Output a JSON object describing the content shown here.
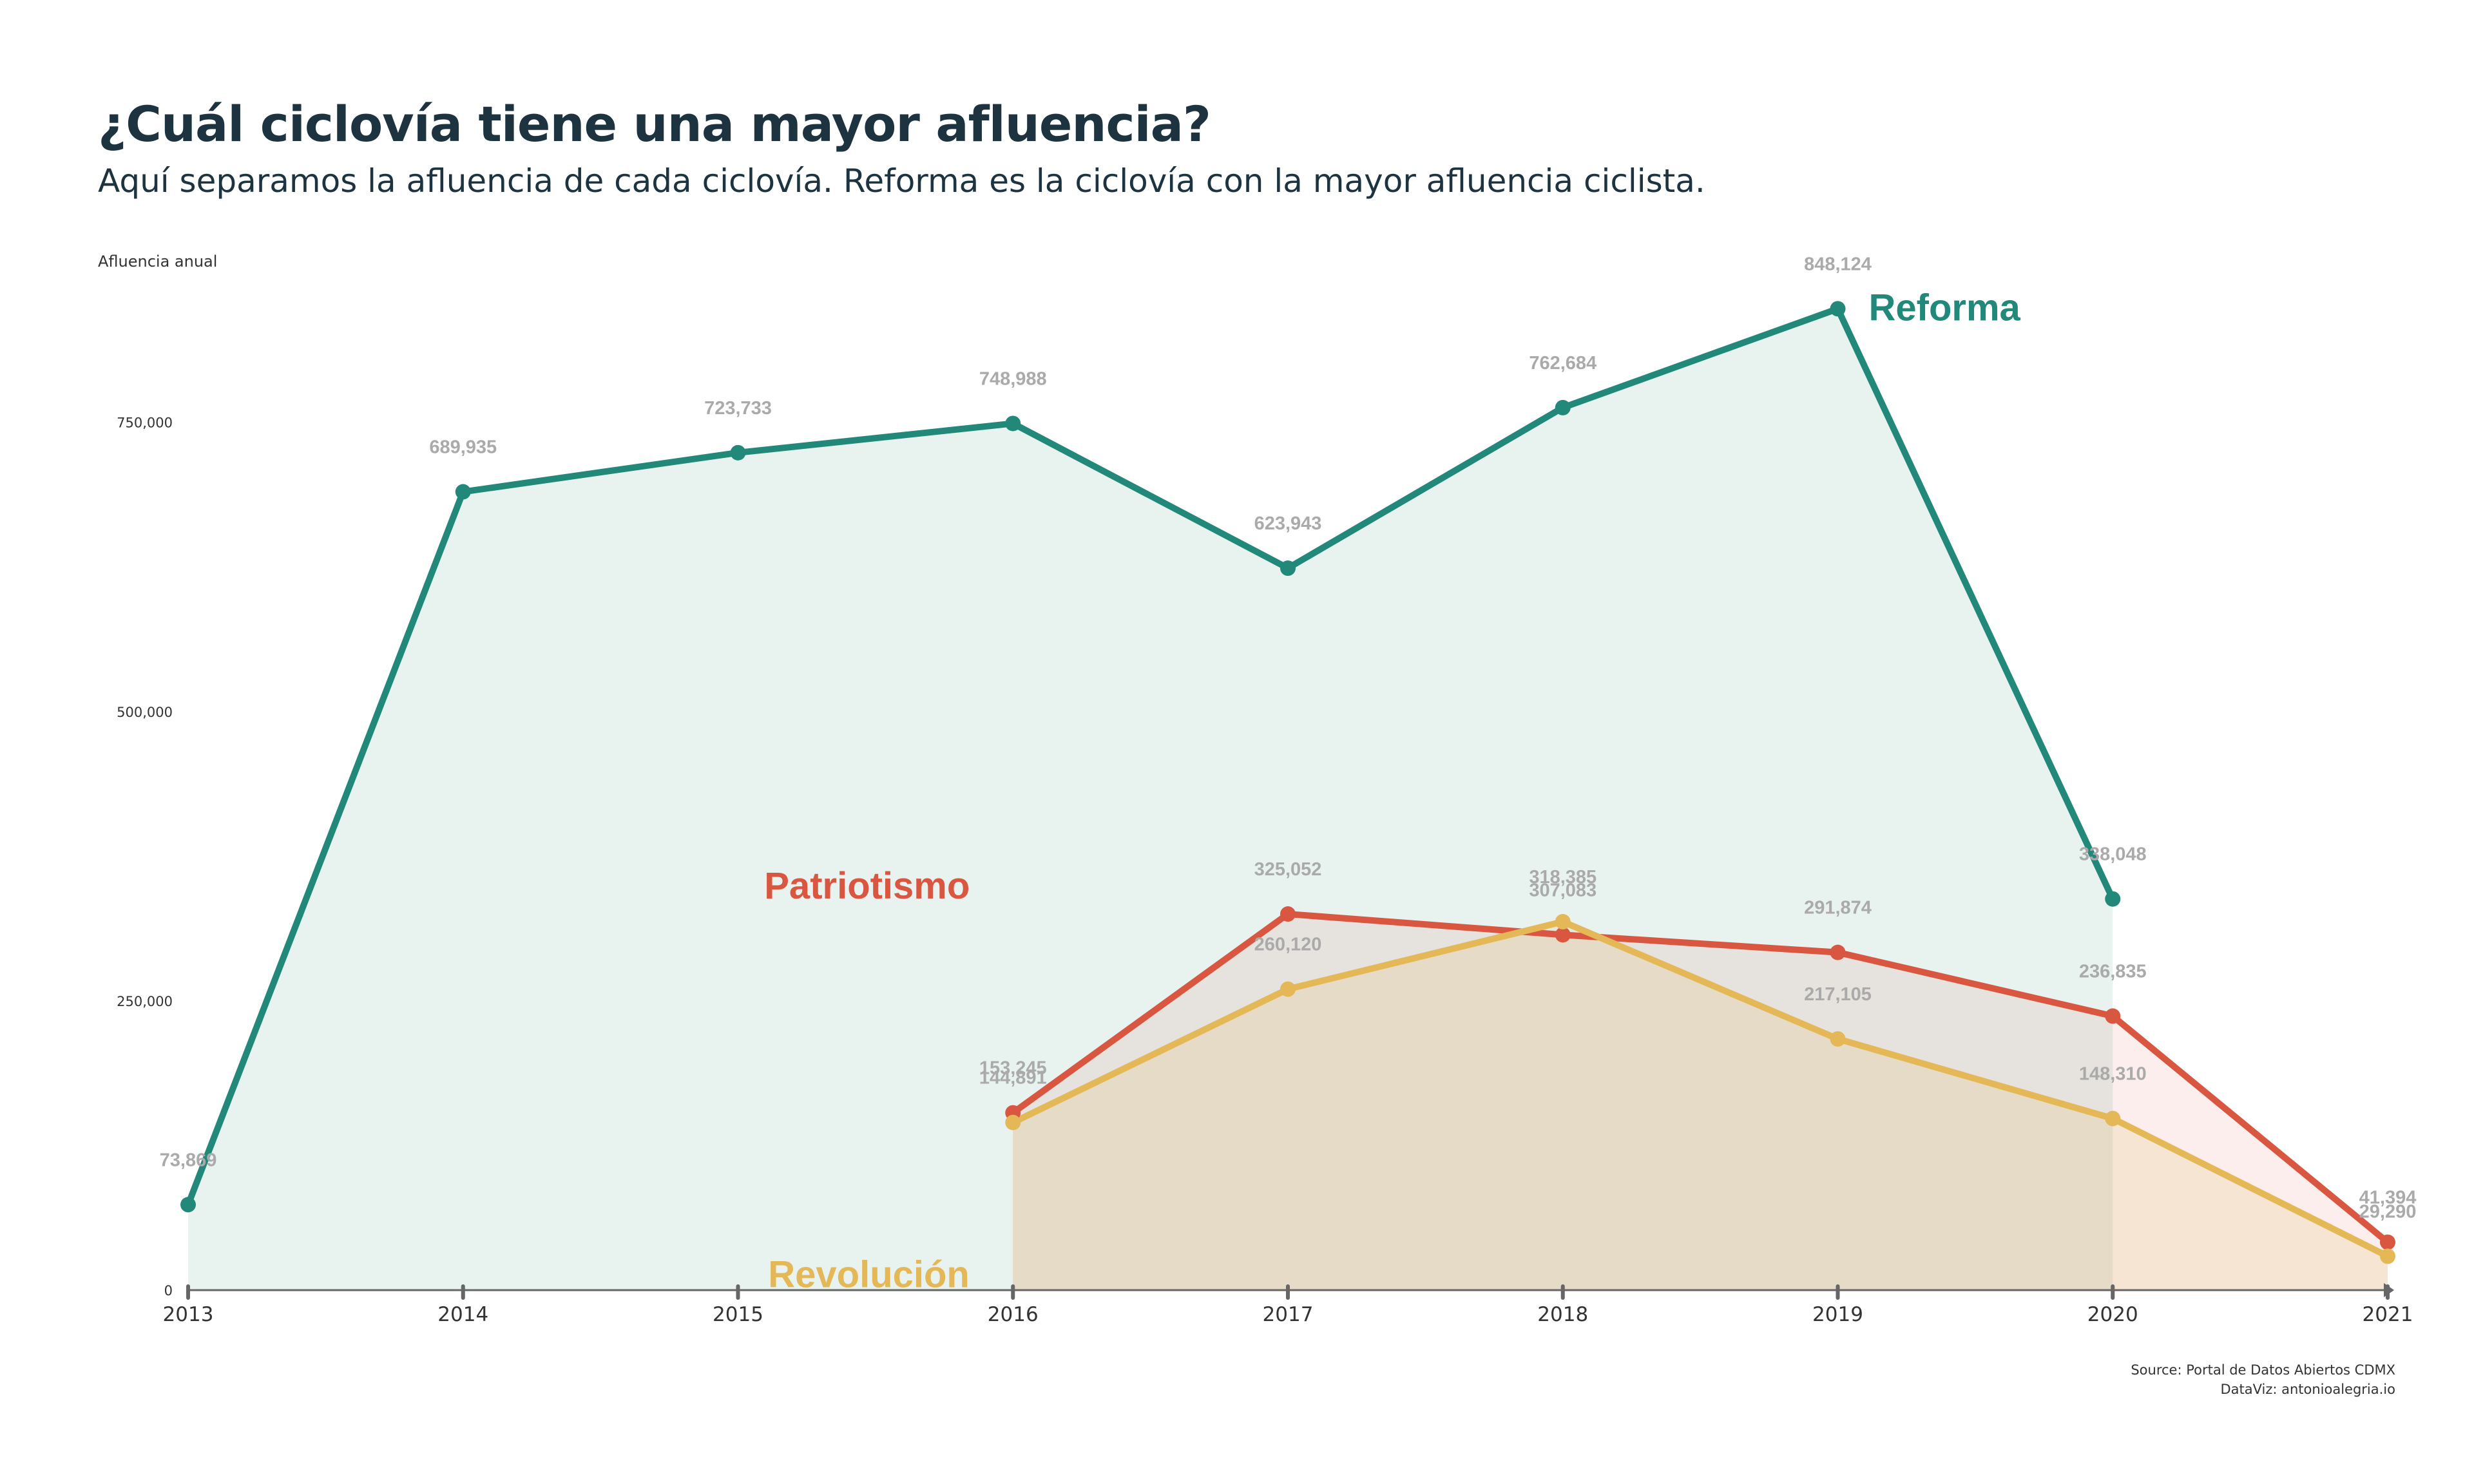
{
  "title": "¿Cuál ciclovía tiene una mayor afluencia?",
  "subtitle": "Aquí separamos la afluencia de cada ciclovía. Reforma es la ciclovía con la mayor afluencia ciclista.",
  "y_axis_title": "Afluencia anual",
  "source_line1": "Source: Portal de Datos Abiertos CDMX",
  "source_line2": "DataViz: antonioalegria.io",
  "chart_data": {
    "type": "area",
    "x": [
      2013,
      2014,
      2015,
      2016,
      2017,
      2018,
      2019,
      2020,
      2021
    ],
    "ylim": [
      0,
      850000
    ],
    "y_ticks": [
      0,
      250000,
      500000,
      750000
    ],
    "y_tick_labels": [
      "0",
      "250,000",
      "500,000",
      "750,000"
    ],
    "grid": false,
    "series": [
      {
        "name": "Reforma",
        "color": "#22897a",
        "fill": "#e8f2ef",
        "x": [
          2013,
          2014,
          2015,
          2016,
          2017,
          2018,
          2019,
          2020
        ],
        "values": [
          73869,
          689935,
          723733,
          748988,
          623943,
          762684,
          848124,
          338048
        ],
        "value_labels": [
          "73,869",
          "689,935",
          "723,733",
          "748,988",
          "623,943",
          "762,684",
          "848,124",
          "338,048"
        ]
      },
      {
        "name": "Patriotismo",
        "color": "#d95641",
        "fill": "rgba(217,86,65,0.10)",
        "x": [
          2016,
          2017,
          2018,
          2019,
          2020,
          2021
        ],
        "values": [
          153245,
          325052,
          307083,
          291874,
          236835,
          41394
        ],
        "value_labels": [
          "153,245",
          "325,052",
          "307,083",
          "291,874",
          "236,835",
          "41,394"
        ]
      },
      {
        "name": "Revolución",
        "color": "#e4b857",
        "fill": "rgba(228,184,87,0.16)",
        "x": [
          2016,
          2017,
          2018,
          2019,
          2020,
          2021
        ],
        "values": [
          144891,
          260120,
          318385,
          217105,
          148310,
          29290
        ],
        "value_labels": [
          "144,891",
          "260,120",
          "318,385",
          "217,105",
          "148,310",
          "29,290"
        ]
      }
    ]
  }
}
